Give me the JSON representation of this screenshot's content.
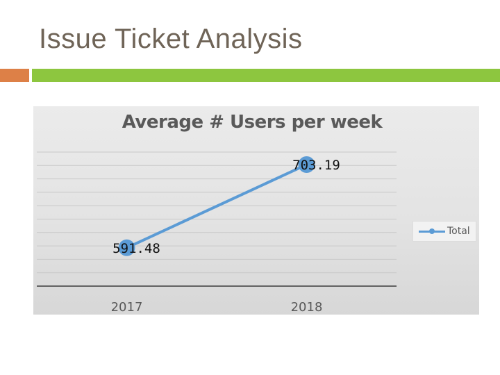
{
  "slide": {
    "title": "Issue Ticket Analysis"
  },
  "colors": {
    "title_text": "#6f6457",
    "accent_orange": "#dd8047",
    "accent_green": "#8dc63f",
    "series_blue": "#5b9bd5",
    "chart_text": "#595959"
  },
  "chart_data": {
    "type": "line",
    "title": "Average # Users per week",
    "categories": [
      "2017",
      "2018"
    ],
    "series": [
      {
        "name": "Total",
        "values": [
          591.48,
          703.19
        ],
        "labels": [
          "591.48",
          "703.19"
        ]
      }
    ],
    "xlabel": "",
    "ylabel": "",
    "ylim": [
      540,
      720
    ],
    "grid": true,
    "legend": "right"
  }
}
